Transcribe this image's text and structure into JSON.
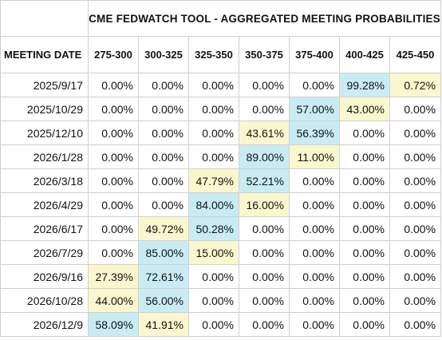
{
  "title": "CME FEDWATCH TOOL - AGGREGATED MEETING PROBABILITIES",
  "date_header": "MEETING DATE",
  "rate_ranges": [
    "275-300",
    "300-325",
    "325-350",
    "350-375",
    "375-400",
    "400-425",
    "425-450"
  ],
  "colors": {
    "highlight_blue": "#c9ecf4",
    "highlight_yellow": "#faf7cf",
    "grid": "#d0d0d0"
  },
  "rows": [
    {
      "date": "2025/9/17",
      "values": [
        "0.00%",
        "0.00%",
        "0.00%",
        "0.00%",
        "0.00%",
        "99.28%",
        "0.72%"
      ],
      "blue": 5,
      "yellow": 6
    },
    {
      "date": "2025/10/29",
      "values": [
        "0.00%",
        "0.00%",
        "0.00%",
        "0.00%",
        "57.00%",
        "43.00%",
        "0.00%"
      ],
      "blue": 4,
      "yellow": 5
    },
    {
      "date": "2025/12/10",
      "values": [
        "0.00%",
        "0.00%",
        "0.00%",
        "43.61%",
        "56.39%",
        "0.00%",
        "0.00%"
      ],
      "blue": 4,
      "yellow": 3
    },
    {
      "date": "2026/1/28",
      "values": [
        "0.00%",
        "0.00%",
        "0.00%",
        "89.00%",
        "11.00%",
        "0.00%",
        "0.00%"
      ],
      "blue": 3,
      "yellow": 4
    },
    {
      "date": "2026/3/18",
      "values": [
        "0.00%",
        "0.00%",
        "47.79%",
        "52.21%",
        "0.00%",
        "0.00%",
        "0.00%"
      ],
      "blue": 3,
      "yellow": 2
    },
    {
      "date": "2026/4/29",
      "values": [
        "0.00%",
        "0.00%",
        "84.00%",
        "16.00%",
        "0.00%",
        "0.00%",
        "0.00%"
      ],
      "blue": 2,
      "yellow": 3
    },
    {
      "date": "2026/6/17",
      "values": [
        "0.00%",
        "49.72%",
        "50.28%",
        "0.00%",
        "0.00%",
        "0.00%",
        "0.00%"
      ],
      "blue": 2,
      "yellow": 1
    },
    {
      "date": "2026/7/29",
      "values": [
        "0.00%",
        "85.00%",
        "15.00%",
        "0.00%",
        "0.00%",
        "0.00%",
        "0.00%"
      ],
      "blue": 1,
      "yellow": 2
    },
    {
      "date": "2026/9/16",
      "values": [
        "27.39%",
        "72.61%",
        "0.00%",
        "0.00%",
        "0.00%",
        "0.00%",
        "0.00%"
      ],
      "blue": 1,
      "yellow": 0
    },
    {
      "date": "2026/10/28",
      "values": [
        "44.00%",
        "56.00%",
        "0.00%",
        "0.00%",
        "0.00%",
        "0.00%",
        "0.00%"
      ],
      "blue": 1,
      "yellow": 0
    },
    {
      "date": "2026/12/9",
      "values": [
        "58.09%",
        "41.91%",
        "0.00%",
        "0.00%",
        "0.00%",
        "0.00%",
        "0.00%"
      ],
      "blue": 0,
      "yellow": 1
    }
  ]
}
